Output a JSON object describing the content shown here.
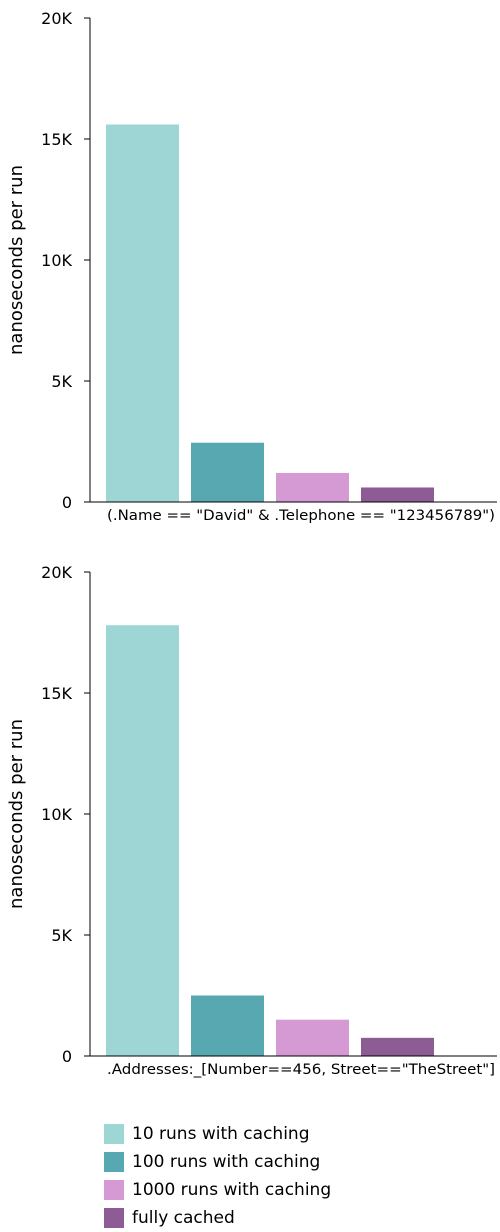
{
  "legend_position": "bottom",
  "chart_data": [
    {
      "type": "bar",
      "title": "",
      "xlabel": "(.Name == \"David\" & .Telephone == \"123456789\")",
      "ylabel": "nanoseconds per run",
      "ylim": [
        0,
        20000
      ],
      "yticks": [
        0,
        5000,
        10000,
        15000,
        20000
      ],
      "ytick_labels": [
        "0",
        "5K",
        "10K",
        "15K",
        "20K"
      ],
      "grid": false,
      "series": [
        {
          "name": "10 runs with caching",
          "values": [
            15600
          ]
        },
        {
          "name": "100 runs with caching",
          "values": [
            2450
          ]
        },
        {
          "name": "1000 runs with caching",
          "values": [
            1200
          ]
        },
        {
          "name": "fully cached",
          "values": [
            600
          ]
        }
      ]
    },
    {
      "type": "bar",
      "title": "",
      "xlabel": ".Addresses:_[Number==456, Street==\"TheStreet\"]",
      "ylabel": "nanoseconds per run",
      "ylim": [
        0,
        20000
      ],
      "yticks": [
        0,
        5000,
        10000,
        15000,
        20000
      ],
      "ytick_labels": [
        "0",
        "5K",
        "10K",
        "15K",
        "20K"
      ],
      "grid": false,
      "series": [
        {
          "name": "10 runs with caching",
          "values": [
            17800
          ]
        },
        {
          "name": "100 runs with caching",
          "values": [
            2500
          ]
        },
        {
          "name": "1000 runs with caching",
          "values": [
            1500
          ]
        },
        {
          "name": "fully cached",
          "values": [
            750
          ]
        }
      ]
    }
  ],
  "series_colors": [
    "#9ed6d6",
    "#58a8b2",
    "#d59ad4",
    "#8e5c95"
  ],
  "legend": [
    {
      "label": "10 runs with caching",
      "color": "#9ed6d6"
    },
    {
      "label": "100 runs with caching",
      "color": "#58a8b2"
    },
    {
      "label": "1000 runs with caching",
      "color": "#d59ad4"
    },
    {
      "label": "fully cached",
      "color": "#8e5c95"
    }
  ]
}
